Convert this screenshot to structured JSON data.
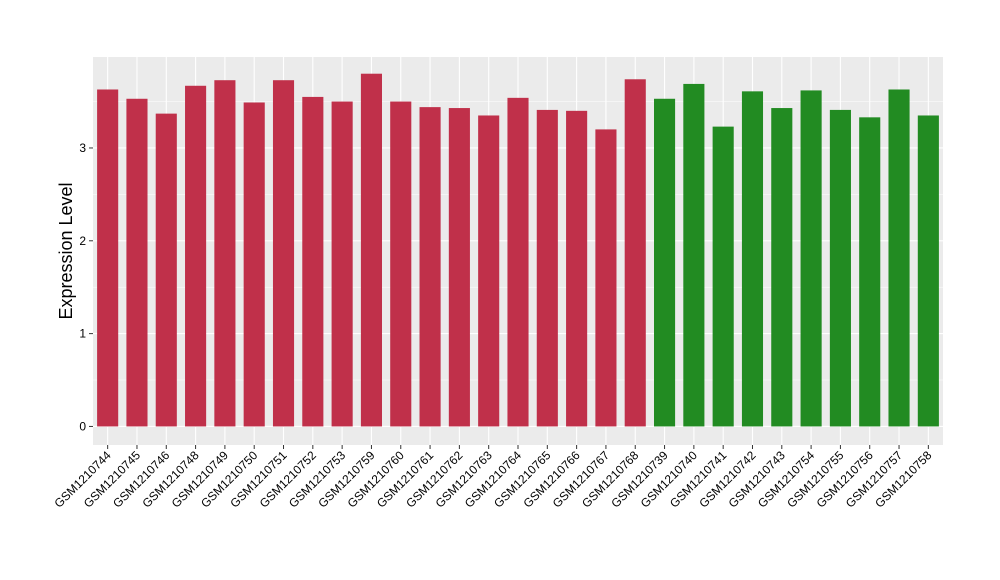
{
  "chart_data": {
    "type": "bar",
    "title": "",
    "xlabel": "",
    "ylabel": "Expression Level",
    "ylim": [
      -0.2,
      3.98
    ],
    "yticks": [
      0,
      1,
      2,
      3
    ],
    "grid": true,
    "legend": "none",
    "categories": [
      "GSM1210744",
      "GSM1210745",
      "GSM1210746",
      "GSM1210748",
      "GSM1210749",
      "GSM1210750",
      "GSM1210751",
      "GSM1210752",
      "GSM1210753",
      "GSM1210759",
      "GSM1210760",
      "GSM1210761",
      "GSM1210762",
      "GSM1210763",
      "GSM1210764",
      "GSM1210765",
      "GSM1210766",
      "GSM1210767",
      "GSM1210768",
      "GSM1210739",
      "GSM1210740",
      "GSM1210741",
      "GSM1210742",
      "GSM1210743",
      "GSM1210754",
      "GSM1210755",
      "GSM1210756",
      "GSM1210757",
      "GSM1210758"
    ],
    "values": [
      3.63,
      3.53,
      3.37,
      3.67,
      3.73,
      3.49,
      3.73,
      3.55,
      3.5,
      3.8,
      3.5,
      3.44,
      3.43,
      3.35,
      3.54,
      3.41,
      3.4,
      3.2,
      3.74,
      3.53,
      3.69,
      3.23,
      3.61,
      3.43,
      3.62,
      3.41,
      3.33,
      3.63,
      3.35
    ],
    "bar_colors": [
      "#c0304a",
      "#c0304a",
      "#c0304a",
      "#c0304a",
      "#c0304a",
      "#c0304a",
      "#c0304a",
      "#c0304a",
      "#c0304a",
      "#c0304a",
      "#c0304a",
      "#c0304a",
      "#c0304a",
      "#c0304a",
      "#c0304a",
      "#c0304a",
      "#c0304a",
      "#c0304a",
      "#c0304a",
      "#228b22",
      "#228b22",
      "#228b22",
      "#228b22",
      "#228b22",
      "#228b22",
      "#228b22",
      "#228b22",
      "#228b22",
      "#228b22"
    ],
    "colors": {
      "panel_background": "#ebebeb",
      "gridline": "#ffffff"
    }
  }
}
